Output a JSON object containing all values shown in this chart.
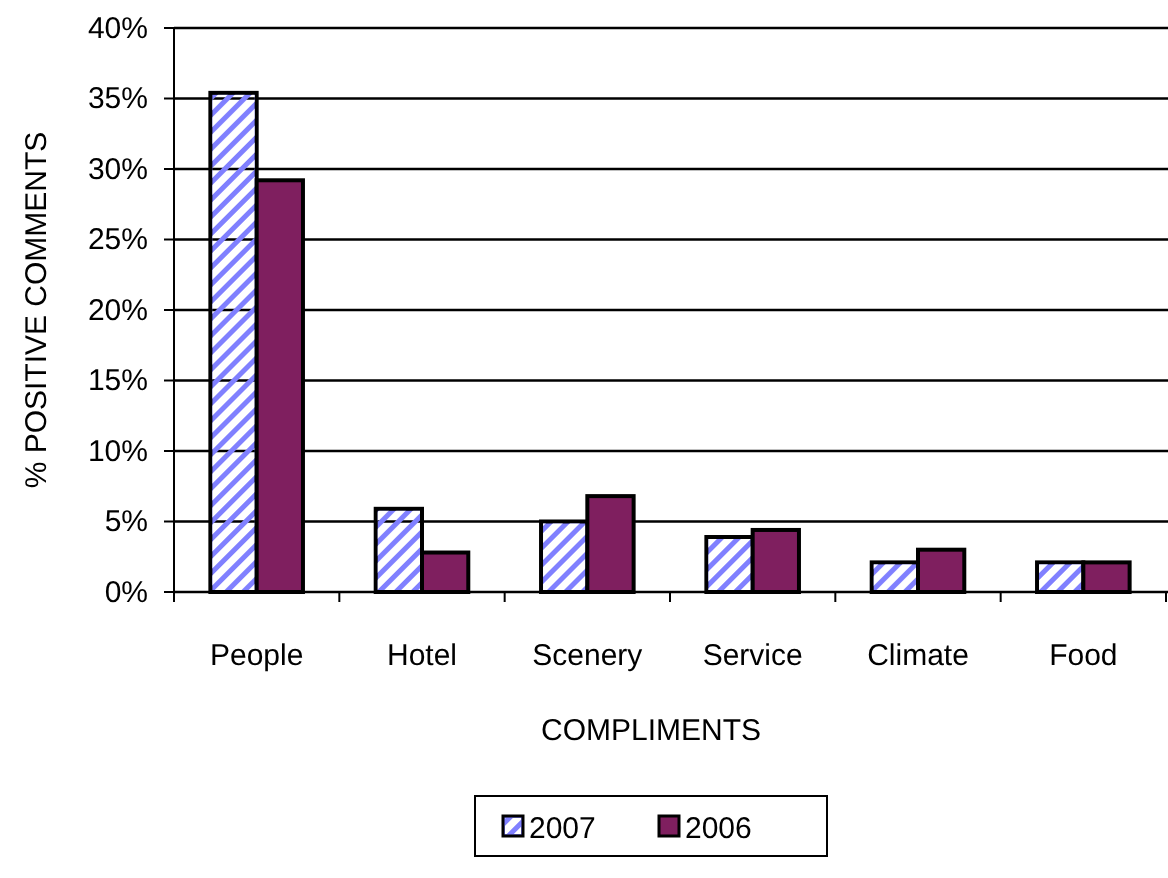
{
  "chart_data": {
    "type": "bar",
    "xlabel": "COMPLIMENTS",
    "ylabel": "% POSITIVE COMMENTS",
    "categories": [
      "People",
      "Hotel",
      "Scenery",
      "Service",
      "Climate",
      "Food"
    ],
    "series": [
      {
        "name": "2007",
        "color": "#8080ff",
        "values": [
          35.4,
          5.9,
          5.0,
          3.9,
          2.1,
          2.1
        ]
      },
      {
        "name": "2006",
        "color": "#7f1f5f",
        "values": [
          29.2,
          2.8,
          6.8,
          4.4,
          3.0,
          2.1
        ]
      }
    ],
    "ylim": [
      0,
      40
    ],
    "yticks": [
      {
        "value": 0,
        "label": "0%"
      },
      {
        "value": 5,
        "label": "5%"
      },
      {
        "value": 10,
        "label": "10%"
      },
      {
        "value": 15,
        "label": "15%"
      },
      {
        "value": 20,
        "label": "20%"
      },
      {
        "value": 25,
        "label": "25%"
      },
      {
        "value": 30,
        "label": "30%"
      },
      {
        "value": 35,
        "label": "35%"
      },
      {
        "value": 40,
        "label": "40%"
      }
    ],
    "grid": "y",
    "legend": "bottom"
  }
}
